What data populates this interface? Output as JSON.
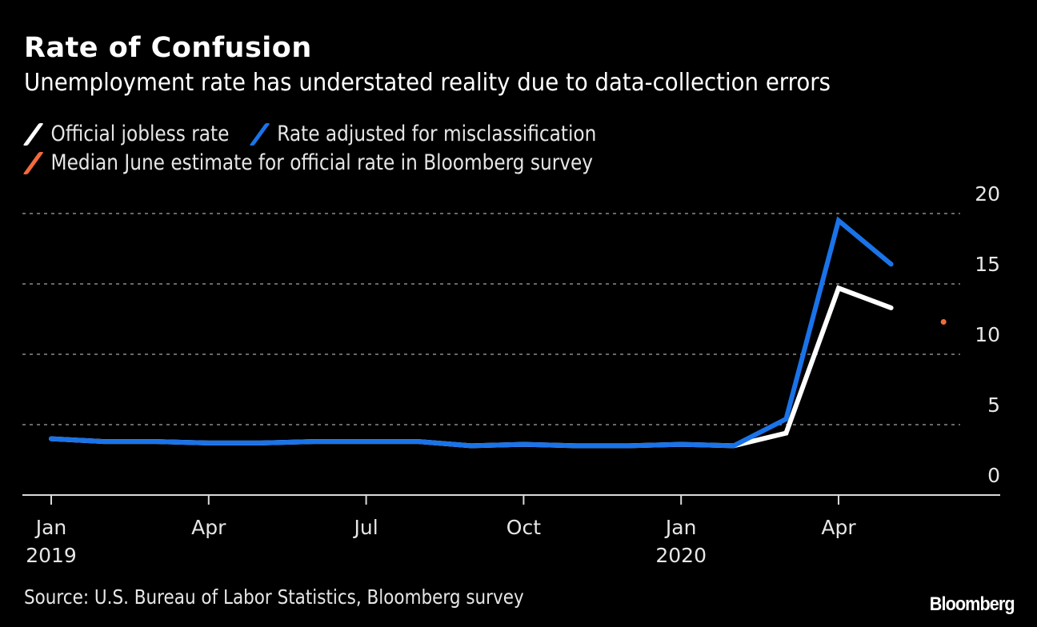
{
  "header": {
    "title": "Rate of Confusion",
    "subtitle": "Unemployment rate has understated reality due to data-collection errors"
  },
  "legend": [
    {
      "label": "Official jobless rate",
      "color": "#ffffff",
      "icon": "slash-swatch"
    },
    {
      "label": "Rate adjusted for misclassification",
      "color": "#1a73e8",
      "icon": "slash-swatch"
    },
    {
      "label": "Median June estimate for official rate in Bloomberg survey",
      "color": "#f26a3d",
      "icon": "slash-swatch"
    }
  ],
  "footer": {
    "source": "Source: U.S. Bureau of Labor Statistics, Bloomberg survey",
    "brand": "Bloomberg"
  },
  "chart_data": {
    "type": "line",
    "title": "Rate of Confusion",
    "subtitle": "Unemployment rate has understated reality due to data-collection errors",
    "xlabel": "",
    "ylabel": "",
    "x": [
      "2019-01",
      "2019-02",
      "2019-03",
      "2019-04",
      "2019-05",
      "2019-06",
      "2019-07",
      "2019-08",
      "2019-09",
      "2019-10",
      "2019-11",
      "2019-12",
      "2020-01",
      "2020-02",
      "2020-03",
      "2020-04",
      "2020-05",
      "2020-06"
    ],
    "x_ticks": [
      {
        "label": "Jan",
        "sublabel": "2019",
        "x": "2019-01"
      },
      {
        "label": "Apr",
        "sublabel": "",
        "x": "2019-04"
      },
      {
        "label": "Jul",
        "sublabel": "",
        "x": "2019-07"
      },
      {
        "label": "Oct",
        "sublabel": "",
        "x": "2019-10"
      },
      {
        "label": "Jan",
        "sublabel": "2020",
        "x": "2020-01"
      },
      {
        "label": "Apr",
        "sublabel": "",
        "x": "2020-04"
      }
    ],
    "y_ticks": [
      0,
      5,
      10,
      15,
      20
    ],
    "ylim": [
      0,
      20
    ],
    "y_axis_side": "right",
    "grid": "horizontal-dotted",
    "legend_position": "top-left",
    "series": [
      {
        "name": "Official jobless rate",
        "color": "#ffffff",
        "values": [
          4.0,
          3.8,
          3.8,
          3.7,
          3.7,
          3.8,
          3.8,
          3.8,
          3.5,
          3.6,
          3.5,
          3.5,
          3.6,
          3.5,
          4.4,
          14.7,
          13.3,
          null
        ]
      },
      {
        "name": "Rate adjusted for misclassification",
        "color": "#1a73e8",
        "values": [
          4.0,
          3.8,
          3.8,
          3.7,
          3.7,
          3.8,
          3.8,
          3.8,
          3.5,
          3.6,
          3.5,
          3.5,
          3.6,
          3.5,
          5.4,
          19.5,
          16.4,
          null
        ]
      },
      {
        "name": "Median June estimate for official rate in Bloomberg survey",
        "color": "#f26a3d",
        "type": "point",
        "values": [
          null,
          null,
          null,
          null,
          null,
          null,
          null,
          null,
          null,
          null,
          null,
          null,
          null,
          null,
          null,
          null,
          null,
          12.3
        ]
      }
    ]
  }
}
